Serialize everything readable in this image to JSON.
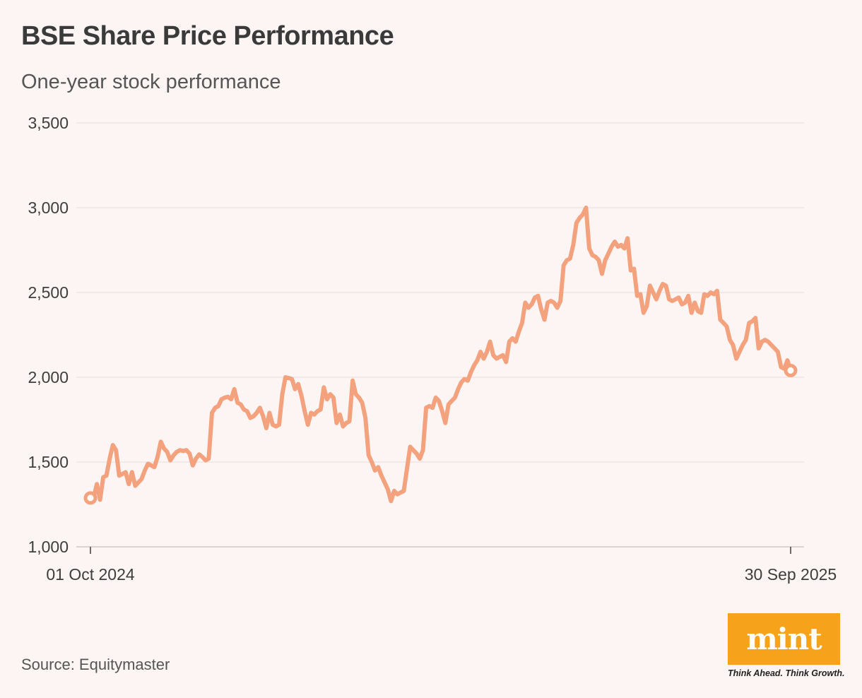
{
  "header": {
    "title": "BSE Share Price Performance",
    "subtitle": "One-year stock performance"
  },
  "footer": {
    "source": "Source: Equitymaster"
  },
  "brand": {
    "logo_text": "mint",
    "tagline": "Think Ahead. Think Growth.",
    "logo_color": "#f7a21b"
  },
  "colors": {
    "line": "#f4a27e",
    "grid": "#e6dcdb",
    "background": "#fdf5f4"
  },
  "chart_data": {
    "type": "line",
    "title": "BSE Share Price Performance",
    "subtitle": "One-year stock performance",
    "xlabel": "",
    "ylabel": "",
    "ylim": [
      1000,
      3500
    ],
    "yticks": [
      1000,
      1500,
      2000,
      2500,
      3000,
      3500
    ],
    "ytick_labels": [
      "1,000",
      "1,500",
      "2,000",
      "2,500",
      "3,000",
      "3,500"
    ],
    "xlim": [
      "2024-10-01",
      "2025-09-30"
    ],
    "xtick_labels": [
      "01 Oct 2024",
      "30 Sep 2025"
    ],
    "grid": true,
    "legend": "none",
    "endpoint_markers": true,
    "series": [
      {
        "values": [
          1288,
          1290,
          1370,
          1278,
          1410,
          1420,
          1520,
          1600,
          1570,
          1420,
          1430,
          1440,
          1370,
          1440,
          1360,
          1380,
          1400,
          1450,
          1490,
          1480,
          1470,
          1530,
          1620,
          1580,
          1560,
          1510,
          1540,
          1560,
          1570,
          1565,
          1570,
          1550,
          1480,
          1520,
          1545,
          1530,
          1510,
          1520,
          1790,
          1820,
          1830,
          1870,
          1880,
          1885,
          1870,
          1930,
          1850,
          1840,
          1810,
          1800,
          1760,
          1770,
          1790,
          1820,
          1770,
          1700,
          1790,
          1720,
          1710,
          1720,
          1900,
          2000,
          1995,
          1990,
          1930,
          1960,
          1890,
          1800,
          1720,
          1790,
          1780,
          1800,
          1810,
          1940,
          1870,
          1900,
          1880,
          1730,
          1780,
          1710,
          1730,
          1740,
          1980,
          1900,
          1880,
          1850,
          1760,
          1540,
          1500,
          1450,
          1470,
          1420,
          1380,
          1340,
          1270,
          1330,
          1310,
          1320,
          1330,
          1460,
          1590,
          1570,
          1550,
          1520,
          1570,
          1820,
          1830,
          1820,
          1880,
          1860,
          1800,
          1730,
          1840,
          1860,
          1880,
          1930,
          1970,
          1990,
          1980,
          2030,
          2070,
          2100,
          2150,
          2110,
          2150,
          2210,
          2130,
          2110,
          2120,
          2130,
          2090,
          2210,
          2230,
          2210,
          2270,
          2320,
          2440,
          2410,
          2430,
          2470,
          2480,
          2400,
          2340,
          2440,
          2450,
          2440,
          2410,
          2450,
          2660,
          2690,
          2700,
          2780,
          2910,
          2940,
          2960,
          3000,
          2760,
          2720,
          2710,
          2690,
          2610,
          2690,
          2730,
          2770,
          2800,
          2770,
          2780,
          2760,
          2820,
          2630,
          2640,
          2480,
          2490,
          2380,
          2420,
          2540,
          2500,
          2460,
          2510,
          2550,
          2540,
          2460,
          2450,
          2460,
          2470,
          2430,
          2440,
          2480,
          2380,
          2440,
          2390,
          2380,
          2490,
          2480,
          2500,
          2490,
          2510,
          2340,
          2320,
          2300,
          2220,
          2190,
          2110,
          2150,
          2190,
          2220,
          2320,
          2330,
          2350,
          2170,
          2210,
          2220,
          2210,
          2190,
          2170,
          2150,
          2060,
          2050,
          2100,
          2040
        ]
      }
    ]
  }
}
